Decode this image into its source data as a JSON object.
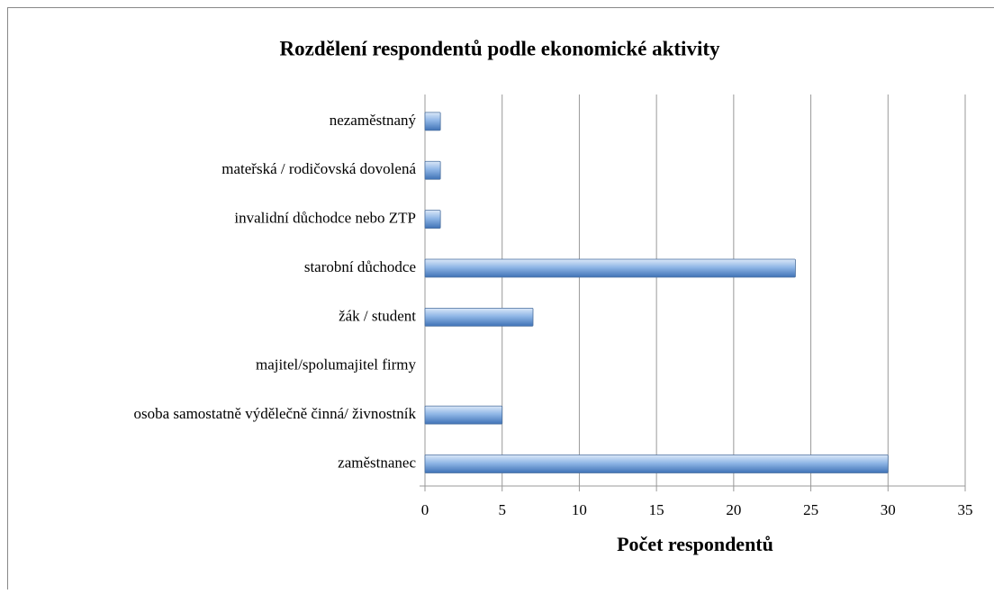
{
  "chart_data": {
    "type": "barh",
    "title": "Rozdělení respondentů podle ekonomické aktivity",
    "x_label": "Počet respondentů",
    "categories": [
      "nezaměstnaný",
      "mateřská / rodičovská dovolená",
      "invalidní důchodce nebo ZTP",
      "starobní důchodce",
      "žák / student",
      "majitel/spolumajitel firmy",
      "osoba samostatně výdělečně činná/ živnostník",
      "zaměstnanec"
    ],
    "values": [
      1,
      1,
      1,
      24,
      7,
      0,
      5,
      30
    ],
    "color": "#6f9fd8",
    "xlim": [
      0,
      35
    ],
    "xticks": [
      0,
      5,
      10,
      15,
      20,
      25,
      30,
      35
    ],
    "grid": true
  }
}
